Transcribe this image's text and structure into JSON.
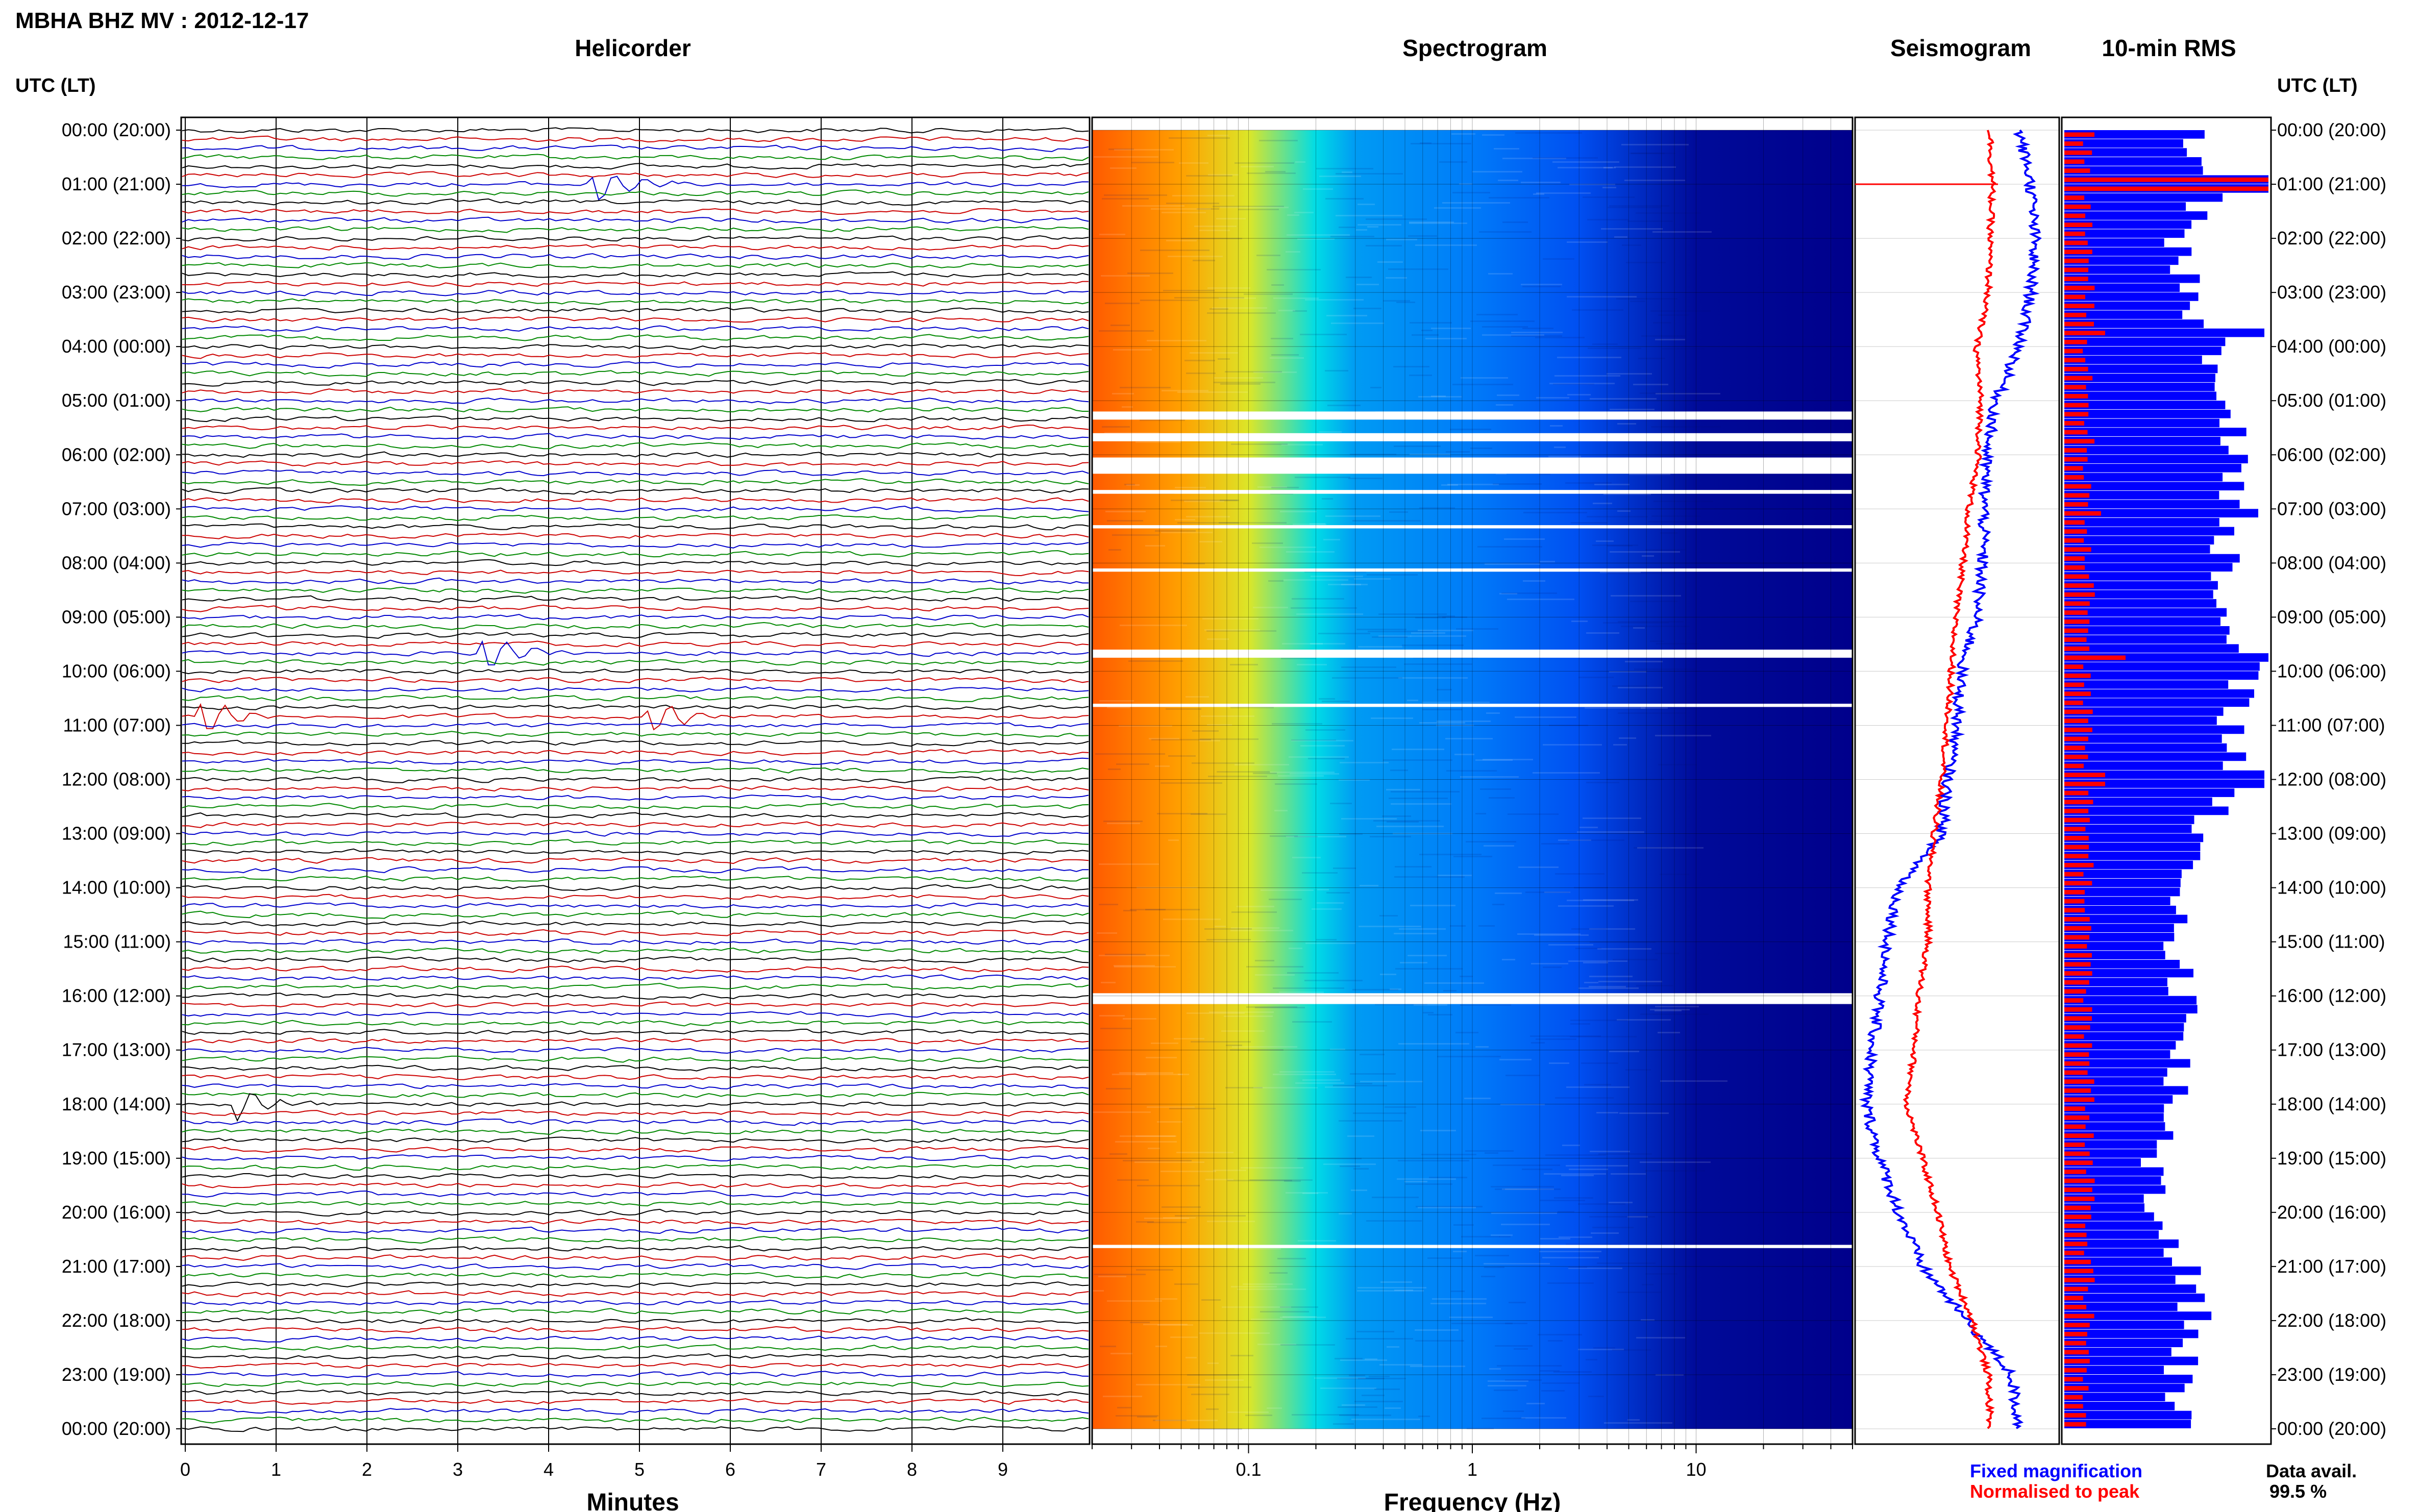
{
  "title": "MBHA BHZ MV : 2012-12-17",
  "panel_titles": {
    "helicorder": "Helicorder",
    "spectrogram": "Spectrogram",
    "seismogram": "Seismogram",
    "rms": "10-min RMS"
  },
  "y_axis_label": "UTC (LT)",
  "x_labels": {
    "helicorder": "Minutes",
    "spectrogram": "Frequency (Hz)"
  },
  "legend": {
    "fixed": "Fixed magnification",
    "normalised": "Normalised to peak",
    "fixed_color": "#0000ff",
    "normalised_color": "#ff0000"
  },
  "availability": {
    "label": "Data avail.",
    "value": "99.5 %"
  },
  "colors": {
    "trace_cycle": [
      "#000000",
      "#cc0000",
      "#0000cc",
      "#008800"
    ],
    "spectrogram_background": "#00008b",
    "rms_fixed": "#0000ff",
    "rms_normalised": "#ff0000"
  },
  "chart_data": [
    {
      "type": "line",
      "panel": "helicorder",
      "xlabel": "Minutes",
      "x_ticks": [
        0,
        1,
        2,
        3,
        4,
        5,
        6,
        7,
        8,
        9
      ],
      "xlim": [
        0,
        10
      ],
      "time_labels": [
        "00:00 (20:00)",
        "01:00 (21:00)",
        "02:00 (22:00)",
        "03:00 (23:00)",
        "04:00 (00:00)",
        "05:00 (01:00)",
        "06:00 (02:00)",
        "07:00 (03:00)",
        "08:00 (04:00)",
        "09:00 (05:00)",
        "10:00 (06:00)",
        "11:00 (07:00)",
        "12:00 (08:00)",
        "13:00 (09:00)",
        "14:00 (10:00)",
        "15:00 (11:00)",
        "16:00 (12:00)",
        "17:00 (13:00)",
        "18:00 (14:00)",
        "19:00 (15:00)",
        "20:00 (16:00)",
        "21:00 (17:00)",
        "22:00 (18:00)",
        "23:00 (19:00)",
        "00:00 (20:00)"
      ],
      "traces_per_hour": 6,
      "events": [
        {
          "hour": 1.0,
          "minute": 4.5,
          "note": "long-period pulse"
        },
        {
          "hour": 9.7,
          "minute": 3.3,
          "note": "large event"
        },
        {
          "hour": 10.8,
          "minute": 0.2,
          "note": "small event"
        },
        {
          "hour": 10.8,
          "minute": 5.1,
          "note": "large event"
        },
        {
          "hour": 18.0,
          "minute": 0.5,
          "note": "event"
        }
      ]
    },
    {
      "type": "heatmap",
      "panel": "spectrogram",
      "xlabel": "Frequency (Hz)",
      "x_scale": "log",
      "xlim": [
        0.02,
        50
      ],
      "x_ticks": [
        0.1,
        1,
        10
      ],
      "data_gaps_utc_hours": [
        [
          5.2,
          5.35
        ],
        [
          5.6,
          5.75
        ],
        [
          6.05,
          6.35
        ],
        [
          6.65,
          6.72
        ],
        [
          7.3,
          7.36
        ],
        [
          8.1,
          8.16
        ],
        [
          9.6,
          9.75
        ],
        [
          10.6,
          10.66
        ],
        [
          15.95,
          16.15
        ],
        [
          20.6,
          20.66
        ]
      ],
      "profile_freq": [
        0.02,
        0.05,
        0.1,
        0.2,
        0.3,
        1,
        3,
        10,
        50
      ],
      "profile_power": [
        1.0,
        0.8,
        0.6,
        0.45,
        0.35,
        0.3,
        0.22,
        0.03,
        0.0
      ]
    },
    {
      "type": "line",
      "panel": "seismogram",
      "hours": [
        0,
        1,
        2,
        3,
        4,
        5,
        6,
        7,
        8,
        9,
        10,
        11,
        12,
        13,
        14,
        15,
        16,
        17,
        18,
        19,
        20,
        21,
        22,
        23,
        24
      ],
      "series": [
        {
          "name": "Fixed magnification",
          "values": [
            0.82,
            0.88,
            0.9,
            0.88,
            0.82,
            0.7,
            0.65,
            0.64,
            0.63,
            0.6,
            0.52,
            0.5,
            0.45,
            0.42,
            0.2,
            0.14,
            0.1,
            0.06,
            0.03,
            0.1,
            0.2,
            0.32,
            0.55,
            0.78,
            0.82
          ]
        },
        {
          "name": "Normalised to peak",
          "values": [
            0.67,
            0.68,
            0.67,
            0.66,
            0.6,
            0.62,
            0.61,
            0.56,
            0.53,
            0.49,
            0.47,
            0.45,
            0.42,
            0.38,
            0.35,
            0.35,
            0.3,
            0.28,
            0.24,
            0.32,
            0.4,
            0.46,
            0.58,
            0.66,
            0.67
          ]
        }
      ]
    },
    {
      "type": "bar",
      "panel": "rms",
      "interval_minutes": 10,
      "fixed_profile": {
        "hours": [
          0,
          1,
          2,
          3,
          4,
          5,
          6,
          7,
          8,
          9,
          10,
          11,
          12,
          13,
          14,
          15,
          16,
          17,
          18,
          19,
          20,
          21,
          22,
          23,
          24
        ],
        "values": [
          0.6,
          0.75,
          0.55,
          0.6,
          0.75,
          0.8,
          0.85,
          0.8,
          0.78,
          0.82,
          0.88,
          0.8,
          0.85,
          0.62,
          0.55,
          0.55,
          0.6,
          0.55,
          0.55,
          0.45,
          0.45,
          0.6,
          0.65,
          0.55,
          0.6
        ]
      },
      "normalised_profile": {
        "hours": [
          0,
          6,
          12,
          18,
          24
        ],
        "values": [
          0.12,
          0.12,
          0.12,
          0.12,
          0.12
        ]
      },
      "spikes": [
        {
          "hour": 1.0,
          "fixed": 1.0,
          "normalised": 1.0
        },
        {
          "hour": 3.8,
          "fixed": 0.98,
          "normalised": 0.2
        },
        {
          "hour": 7.05,
          "fixed": 0.95,
          "normalised": 0.18
        },
        {
          "hour": 9.8,
          "fixed": 1.0,
          "normalised": 0.3
        },
        {
          "hour": 12.0,
          "fixed": 0.98,
          "normalised": 0.2
        }
      ]
    }
  ]
}
